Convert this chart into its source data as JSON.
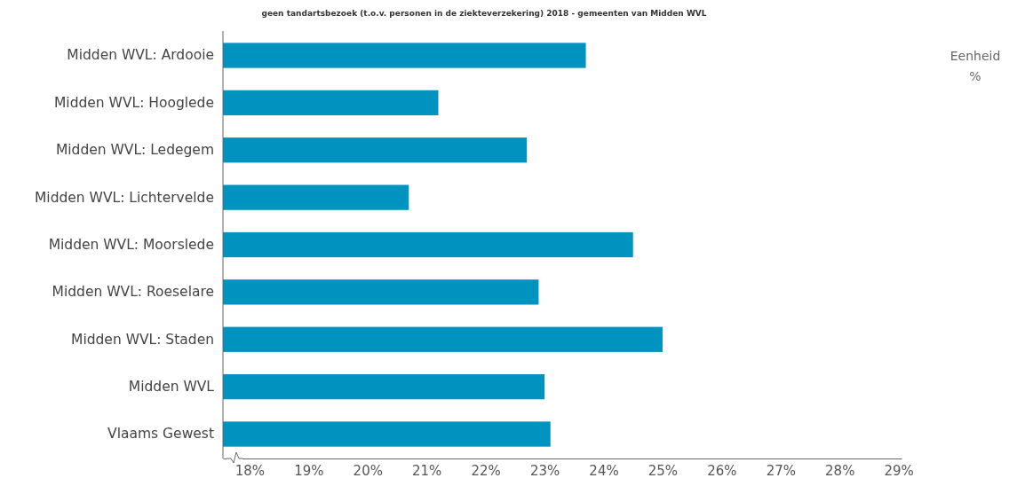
{
  "chart_data": {
    "type": "bar",
    "orientation": "horizontal",
    "title": "geen tandartsbezoek (t.o.v. personen in de ziekteverzekering) 2018 - gemeenten van Midden WVL",
    "categories": [
      "Midden WVL: Ardooie",
      "Midden WVL: Hooglede",
      "Midden WVL: Ledegem",
      "Midden WVL: Lichtervelde",
      "Midden WVL: Moorslede",
      "Midden WVL: Roeselare",
      "Midden WVL: Staden",
      "Midden WVL",
      "Vlaams Gewest"
    ],
    "values": [
      23.7,
      21.2,
      22.7,
      20.7,
      24.5,
      22.9,
      25.0,
      23.0,
      23.1
    ],
    "color": "#0093c0",
    "xlim": [
      17.55,
      29.05
    ],
    "xticks": [
      {
        "value": 18,
        "label": "18%"
      },
      {
        "value": 19,
        "label": "19%"
      },
      {
        "value": 20,
        "label": "20%"
      },
      {
        "value": 21,
        "label": "21%"
      },
      {
        "value": 22,
        "label": "22%"
      },
      {
        "value": 23,
        "label": "23%"
      },
      {
        "value": 24,
        "label": "24%"
      },
      {
        "value": 25,
        "label": "25%"
      },
      {
        "value": 26,
        "label": "26%"
      },
      {
        "value": 27,
        "label": "27%"
      },
      {
        "value": 28,
        "label": "28%"
      },
      {
        "value": 29,
        "label": "29%"
      }
    ],
    "annotations": [
      "Eenheid",
      "%"
    ],
    "grid": false
  }
}
